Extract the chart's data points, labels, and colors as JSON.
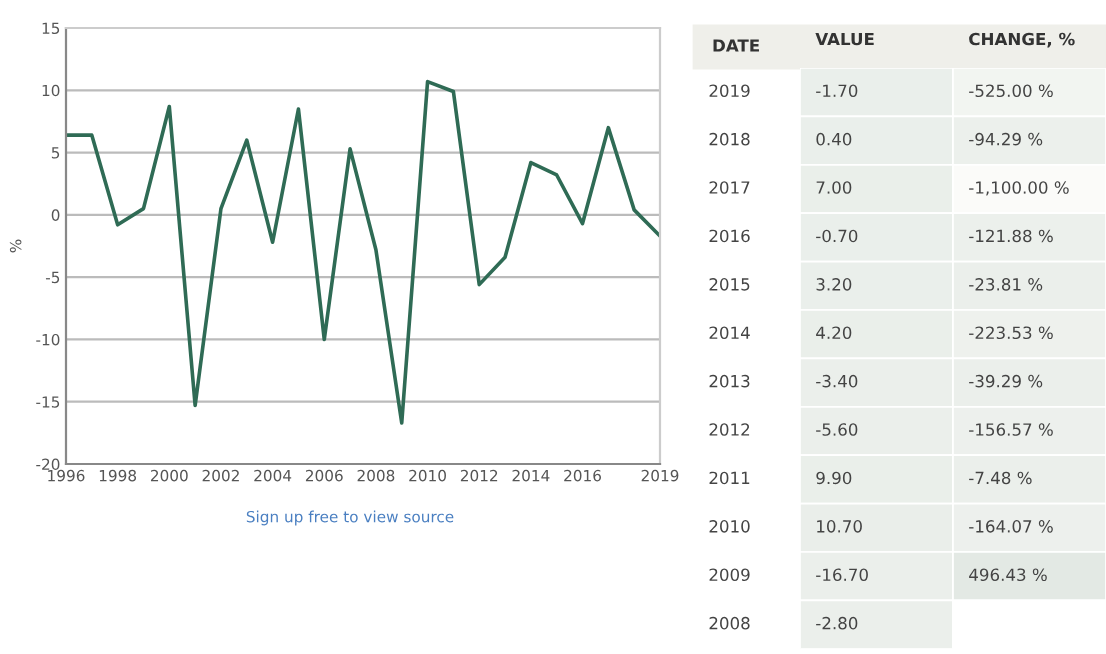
{
  "chart_data": [
    {
      "type": "line",
      "ylabel": "%",
      "x": [
        1996,
        1997,
        1998,
        1999,
        2000,
        2001,
        2002,
        2003,
        2004,
        2005,
        2006,
        2007,
        2008,
        2009,
        2010,
        2011,
        2012,
        2013,
        2014,
        2015,
        2016,
        2017,
        2018,
        2019
      ],
      "series": [
        {
          "color": "#2f6b55",
          "values": [
            6.4,
            6.4,
            -0.8,
            0.5,
            8.7,
            -15.3,
            0.5,
            6.0,
            -2.2,
            8.5,
            -10.0,
            5.3,
            -2.8,
            -16.7,
            10.7,
            9.9,
            -5.6,
            -3.4,
            4.2,
            3.2,
            -0.7,
            7.0,
            0.4,
            -1.7
          ]
        }
      ],
      "xlim": [
        1996,
        2019
      ],
      "xticks": [
        1996,
        1998,
        2000,
        2002,
        2004,
        2006,
        2008,
        2010,
        2012,
        2014,
        2016,
        2019
      ],
      "ylim": [
        -20,
        15
      ],
      "yticks": [
        -20,
        -15,
        -10,
        -5,
        0,
        5,
        10,
        15
      ],
      "grid": "y",
      "marker": "none",
      "line_style": "solid",
      "annotations": [
        "Sign up free to view source"
      ]
    },
    {
      "type": "heatmap",
      "ylabel": "DATE",
      "categories": [
        "VALUE",
        "CHANGE, %"
      ],
      "y_categories": [
        "2019",
        "2018",
        "2017",
        "2016",
        "2015",
        "2014",
        "2013",
        "2012",
        "2011",
        "2010",
        "2009",
        "2008"
      ],
      "cells": [
        [
          -1.7,
          -525.0
        ],
        [
          0.4,
          -94.29
        ],
        [
          7.0,
          -1100.0
        ],
        [
          -0.7,
          -121.88
        ],
        [
          3.2,
          -23.81
        ],
        [
          4.2,
          -223.53
        ],
        [
          -3.4,
          -39.29
        ],
        [
          -5.6,
          -156.57
        ],
        [
          9.9,
          -7.48
        ],
        [
          10.7,
          -164.07
        ],
        [
          -16.7,
          496.43
        ],
        [
          -2.8,
          null
        ]
      ],
      "cell_labels": [
        [
          "-1.70",
          "-525.00 %"
        ],
        [
          "0.40",
          "-94.29 %"
        ],
        [
          "7.00",
          "-1,100.00 %"
        ],
        [
          "-0.70",
          "-121.88 %"
        ],
        [
          "3.20",
          "-23.81 %"
        ],
        [
          "4.20",
          "-223.53 %"
        ],
        [
          "-3.40",
          "-39.29 %"
        ],
        [
          "-5.60",
          "-156.57 %"
        ],
        [
          "9.90",
          "-7.48 %"
        ],
        [
          "10.70",
          "-164.07 %"
        ],
        [
          "-16.70",
          "496.43 %"
        ],
        [
          "-2.80",
          null
        ]
      ]
    }
  ]
}
